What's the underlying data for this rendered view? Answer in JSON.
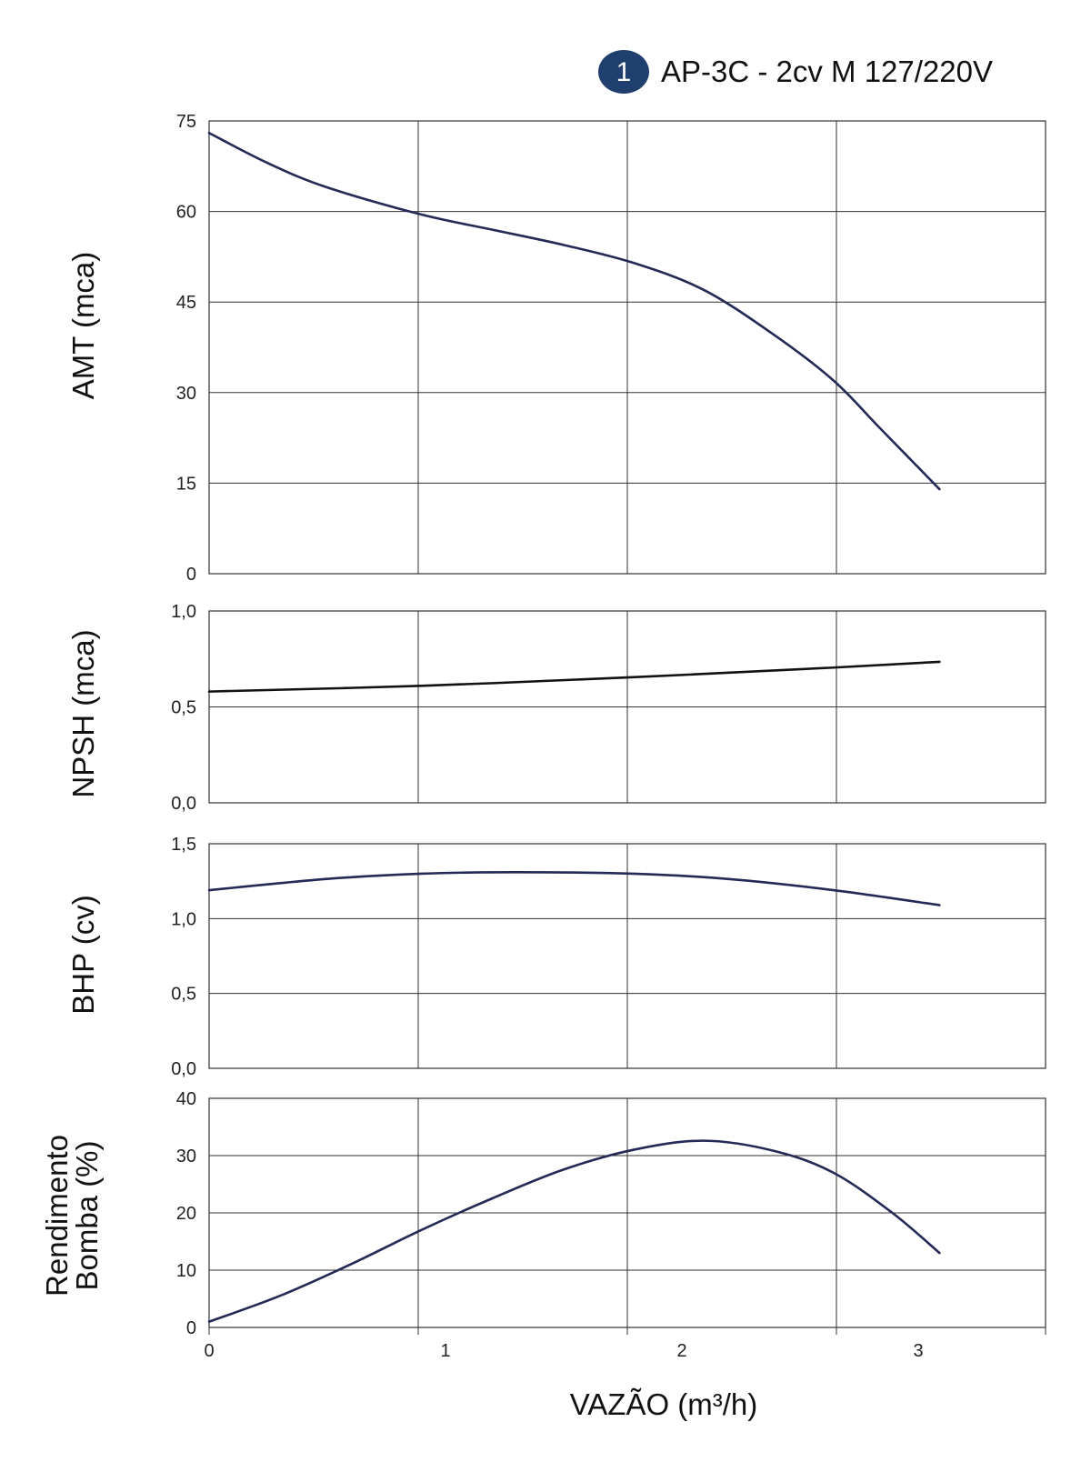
{
  "legend": {
    "badge": "1",
    "label": "AP-3C - 2cv M 127/220V",
    "badge_color": "#1f3f6e"
  },
  "xlabel": "VAZÃO (m³/h)",
  "x_ticks": [
    "0",
    "1",
    "2",
    "3"
  ],
  "colors": {
    "curve": "#222a55",
    "npsh_curve": "#111111",
    "grid": "#333333"
  },
  "chart_data": [
    {
      "type": "line",
      "ylabel": [
        "AMT (mca)"
      ],
      "ylim": [
        0,
        75
      ],
      "xlim": [
        0,
        3.55
      ],
      "y_ticks": [
        "0",
        "15",
        "30",
        "45",
        "60",
        "75"
      ],
      "series": [
        {
          "x": [
            0.0,
            0.25,
            0.5,
            0.9,
            1.2,
            1.5,
            1.8,
            2.1,
            2.4,
            2.65,
            2.85,
            3.1
          ],
          "y": [
            73,
            68,
            64,
            59.5,
            57,
            54.5,
            51.5,
            47,
            39.5,
            32,
            24,
            14
          ]
        }
      ]
    },
    {
      "type": "line",
      "ylabel": [
        "NPSH (mca)"
      ],
      "ylim": [
        0.0,
        1.0
      ],
      "xlim": [
        0,
        3.55
      ],
      "y_ticks": [
        "0,0",
        "0,5",
        "1,0"
      ],
      "series": [
        {
          "x": [
            0.0,
            0.9,
            1.8,
            2.65,
            3.1
          ],
          "y": [
            0.58,
            0.61,
            0.655,
            0.705,
            0.735
          ]
        }
      ]
    },
    {
      "type": "line",
      "ylabel": [
        "BHP (cv)"
      ],
      "ylim": [
        0.0,
        1.5
      ],
      "xlim": [
        0,
        3.55
      ],
      "y_ticks": [
        "0,0",
        "0,5",
        "1,0",
        "1,5"
      ],
      "series": [
        {
          "x": [
            0.0,
            0.5,
            0.9,
            1.3,
            1.8,
            2.2,
            2.65,
            3.1
          ],
          "y": [
            1.19,
            1.265,
            1.3,
            1.31,
            1.3,
            1.265,
            1.19,
            1.09
          ]
        }
      ]
    },
    {
      "type": "line",
      "ylabel": [
        "Rendimento",
        "Bomba (%)"
      ],
      "ylim": [
        0,
        40
      ],
      "xlim": [
        0,
        3.55
      ],
      "y_ticks": [
        "0",
        "10",
        "20",
        "30",
        "40"
      ],
      "series": [
        {
          "x": [
            0.0,
            0.3,
            0.6,
            0.9,
            1.2,
            1.5,
            1.8,
            2.1,
            2.4,
            2.65,
            2.9,
            3.1
          ],
          "y": [
            1,
            5.5,
            11,
            17,
            22.5,
            27.5,
            31,
            32.6,
            30.8,
            27,
            20,
            13
          ]
        }
      ]
    }
  ]
}
